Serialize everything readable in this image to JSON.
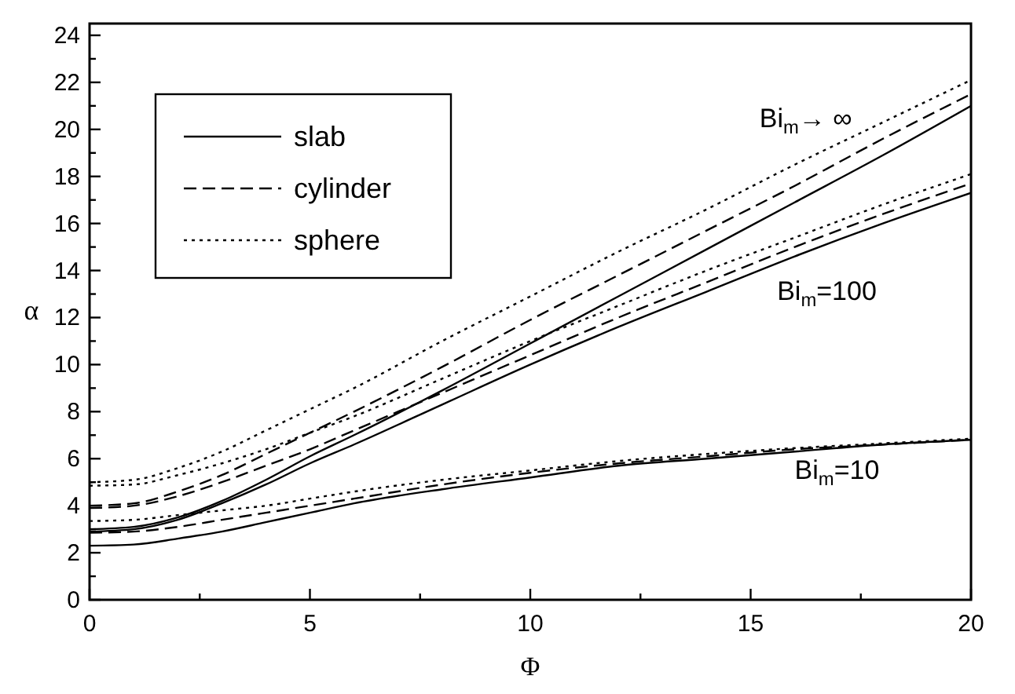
{
  "chart_data": {
    "type": "line",
    "xlabel": "Φ",
    "ylabel": "α",
    "xlim": [
      0,
      20
    ],
    "ylim": [
      0,
      24.5
    ],
    "xticks": [
      0,
      {
        "value": 2.5,
        "label": null
      },
      5,
      {
        "value": 7.5,
        "label": null
      },
      10,
      {
        "value": 12.5,
        "label": null
      },
      15,
      {
        "value": 17.5,
        "label": null
      },
      20
    ],
    "yticks": [
      0,
      {
        "value": 1,
        "label": null
      },
      2,
      {
        "value": 3,
        "label": null
      },
      4,
      {
        "value": 5,
        "label": null
      },
      6,
      {
        "value": 7,
        "label": null
      },
      8,
      {
        "value": 9,
        "label": null
      },
      10,
      {
        "value": 11,
        "label": null
      },
      12,
      {
        "value": 13,
        "label": null
      },
      14,
      {
        "value": 15,
        "label": null
      },
      16,
      {
        "value": 17,
        "label": null
      },
      18,
      {
        "value": 19,
        "label": null
      },
      20,
      {
        "value": 21,
        "label": null
      },
      22,
      {
        "value": 23,
        "label": null
      },
      24
    ],
    "x": [
      0,
      1,
      2,
      3,
      4,
      5,
      6,
      8,
      10,
      12,
      14,
      16,
      18,
      20
    ],
    "legend": "top left",
    "grid": false,
    "series": [
      {
        "name": "slab",
        "color": "#000000",
        "line_style": "solid",
        "values": [
          3,
          3.1,
          3.5,
          4.2,
          5.1,
          6.1,
          7.0,
          8.9,
          10.9,
          12.9,
          14.9,
          16.9,
          18.9,
          21
        ]
      },
      {
        "name": "cylinder",
        "color": "#000000",
        "line_style": "dashed",
        "values": [
          4,
          4.1,
          4.6,
          5.3,
          6.2,
          7.1,
          8.0,
          9.9,
          11.9,
          13.8,
          15.7,
          17.6,
          19.6,
          21.5
        ]
      },
      {
        "name": "sphere",
        "color": "#000000",
        "line_style": "dotted",
        "values": [
          5,
          5.1,
          5.6,
          6.3,
          7.2,
          8.1,
          9.0,
          11.0,
          12.9,
          14.8,
          16.6,
          18.5,
          20.3,
          22.1
        ]
      },
      {
        "color": "#000000",
        "line_style": "solid",
        "values": [
          2.9,
          3.0,
          3.4,
          4.1,
          4.9,
          5.8,
          6.6,
          8.3,
          10.0,
          11.6,
          13.1,
          14.6,
          16.0,
          17.3
        ]
      },
      {
        "color": "#000000",
        "line_style": "dashed",
        "values": [
          3.9,
          4.0,
          4.4,
          5.0,
          5.7,
          6.4,
          7.2,
          8.8,
          10.4,
          12.0,
          13.5,
          15.0,
          16.4,
          17.7
        ]
      },
      {
        "color": "#000000",
        "line_style": "dotted",
        "values": [
          4.85,
          4.9,
          5.3,
          5.8,
          6.4,
          7.1,
          7.8,
          9.4,
          11.0,
          12.5,
          14.0,
          15.4,
          16.8,
          18.1
        ]
      },
      {
        "color": "#000000",
        "line_style": "solid",
        "values": [
          2.3,
          2.35,
          2.6,
          2.9,
          3.3,
          3.7,
          4.1,
          4.7,
          5.2,
          5.7,
          6.0,
          6.3,
          6.6,
          6.8
        ]
      },
      {
        "color": "#000000",
        "line_style": "dashed",
        "values": [
          2.85,
          2.9,
          3.1,
          3.4,
          3.7,
          4.0,
          4.3,
          4.9,
          5.4,
          5.8,
          6.1,
          6.4,
          6.6,
          6.8
        ]
      },
      {
        "color": "#000000",
        "line_style": "dotted",
        "values": [
          3.35,
          3.4,
          3.6,
          3.8,
          4.0,
          4.3,
          4.6,
          5.1,
          5.5,
          5.9,
          6.2,
          6.45,
          6.65,
          6.85
        ]
      }
    ],
    "annotations": [
      "Bi$_{m}$→ ∞",
      "Bi$_{m}$=100",
      "Bi$_{m}$=10"
    ]
  }
}
